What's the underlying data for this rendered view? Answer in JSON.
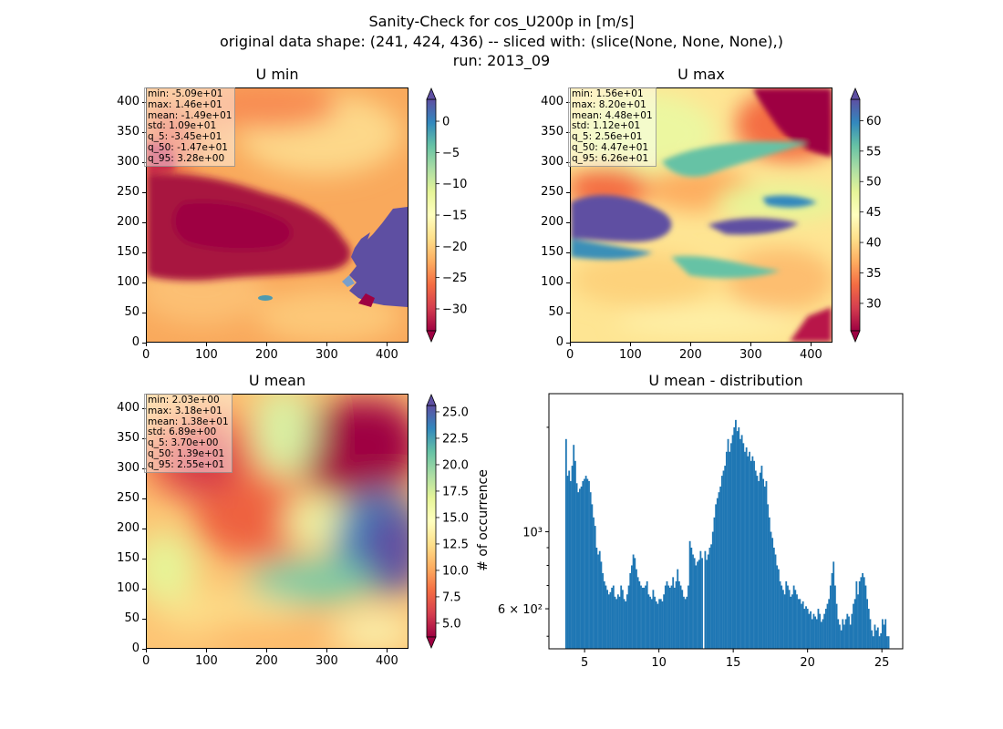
{
  "suptitle": {
    "line1": "Sanity-Check for cos_U200p in [m/s]",
    "line2": "original data shape: (241, 424, 436) -- sliced with: (slice(None, None, None),)",
    "line3": "run: 2013_09"
  },
  "map_axes": {
    "x_ticks": [
      "0",
      "100",
      "200",
      "300",
      "400"
    ],
    "y_ticks": [
      "0",
      "50",
      "100",
      "150",
      "200",
      "250",
      "300",
      "350",
      "400"
    ],
    "x_range": [
      0,
      436
    ],
    "y_range": [
      0,
      424
    ]
  },
  "colors": {
    "colormap": "Spectral",
    "hist_bar": "#1f77b4"
  },
  "chart_data": [
    {
      "type": "heatmap",
      "title": "U min",
      "colormap": "Spectral",
      "colorbar_ticks": [
        "0",
        "−5",
        "−10",
        "−15",
        "−20",
        "−25",
        "−30"
      ],
      "colorbar_tick_values": [
        0,
        -5,
        -10,
        -15,
        -20,
        -25,
        -30
      ],
      "colorbar_range": [
        -33.5,
        3.5
      ],
      "stats": [
        "min: -5.09e+01",
        "max: 1.46e+01",
        "mean: -1.49e+01",
        "std: 1.09e+01",
        "q_5: -3.45e+01",
        "q_50: -1.47e+01",
        "q_95: 3.28e+00"
      ]
    },
    {
      "type": "heatmap",
      "title": "U max",
      "colormap": "Spectral",
      "colorbar_ticks": [
        "60",
        "55",
        "50",
        "45",
        "40",
        "35",
        "30"
      ],
      "colorbar_tick_values": [
        60,
        55,
        50,
        45,
        40,
        35,
        30
      ],
      "colorbar_range": [
        25.5,
        63.5
      ],
      "stats": [
        "min: 1.56e+01",
        "max: 8.20e+01",
        "mean: 4.48e+01",
        "std: 1.12e+01",
        "q_5: 2.56e+01",
        "q_50: 4.47e+01",
        "q_95: 6.26e+01"
      ]
    },
    {
      "type": "heatmap",
      "title": "U mean",
      "colormap": "Spectral",
      "colorbar_ticks": [
        "25.0",
        "22.5",
        "20.0",
        "17.5",
        "15.0",
        "12.5",
        "10.0",
        "7.5",
        "5.0"
      ],
      "colorbar_tick_values": [
        25,
        22.5,
        20,
        17.5,
        15,
        12.5,
        10,
        7.5,
        5
      ],
      "colorbar_range": [
        3.7,
        25.6
      ],
      "stats": [
        "min: 2.03e+00",
        "max: 3.18e+01",
        "mean: 1.38e+01",
        "std: 6.89e+00",
        "q_5: 3.70e+00",
        "q_50: 1.39e+01",
        "q_95: 2.55e+01"
      ]
    },
    {
      "type": "bar",
      "title": "U mean - distribution",
      "ylabel": "# of occurrence",
      "yscale": "log",
      "x_ticks": [
        "5",
        "10",
        "15",
        "20",
        "25"
      ],
      "x_tick_values": [
        5,
        10,
        15,
        20,
        25
      ],
      "xlim": [
        2.6,
        26.4
      ],
      "ylim": [
        460,
        2500
      ],
      "y_tick_labels": [
        "10³",
        "6 × 10²"
      ],
      "y_tick_values": [
        1000,
        600
      ],
      "bins_start": 3.7,
      "bins_end": 25.5,
      "values": [
        1850,
        1450,
        1500,
        1400,
        1550,
        1780,
        1600,
        1380,
        1300,
        1330,
        1350,
        1400,
        1420,
        1450,
        1420,
        1400,
        1300,
        1200,
        1100,
        1040,
        900,
        860,
        880,
        820,
        760,
        720,
        700,
        680,
        660,
        670,
        690,
        700,
        650,
        640,
        660,
        650,
        700,
        680,
        640,
        630,
        660,
        700,
        760,
        800,
        860,
        840,
        780,
        740,
        720,
        700,
        690,
        690,
        700,
        720,
        660,
        650,
        640,
        680,
        650,
        630,
        620,
        640,
        640,
        630,
        660,
        700,
        720,
        700,
        690,
        700,
        740,
        690,
        720,
        780,
        720,
        700,
        680,
        650,
        640,
        650,
        700,
        940,
        900,
        860,
        840,
        800,
        820,
        830,
        880,
        840,
        460,
        880,
        830,
        860,
        900,
        920,
        1000,
        1100,
        1200,
        1250,
        1300,
        1350,
        1450,
        1500,
        1550,
        1700,
        1850,
        1700,
        1800,
        1900,
        2000,
        2100,
        1950,
        2000,
        1850,
        1900,
        1800,
        1700,
        1750,
        1650,
        1700,
        1600,
        1650,
        1600,
        1500,
        1450,
        1400,
        1480,
        1550,
        1420,
        1350,
        1400,
        1200,
        1100,
        1000,
        960,
        900,
        860,
        800,
        780,
        720,
        700,
        680,
        660,
        720,
        700,
        680,
        650,
        660,
        700,
        680,
        660,
        640,
        640,
        620,
        630,
        600,
        610,
        600,
        580,
        590,
        560,
        580,
        570,
        560,
        600,
        580,
        550,
        560,
        580,
        600,
        620,
        640,
        700,
        760,
        820,
        700,
        620,
        560,
        540,
        520,
        560,
        540,
        560,
        580,
        570,
        540,
        580,
        620,
        640,
        720,
        660,
        720,
        740,
        760,
        740,
        700,
        640,
        600,
        560,
        520,
        500,
        540,
        520,
        530,
        500,
        510,
        560,
        540,
        560,
        500,
        500
      ]
    }
  ]
}
